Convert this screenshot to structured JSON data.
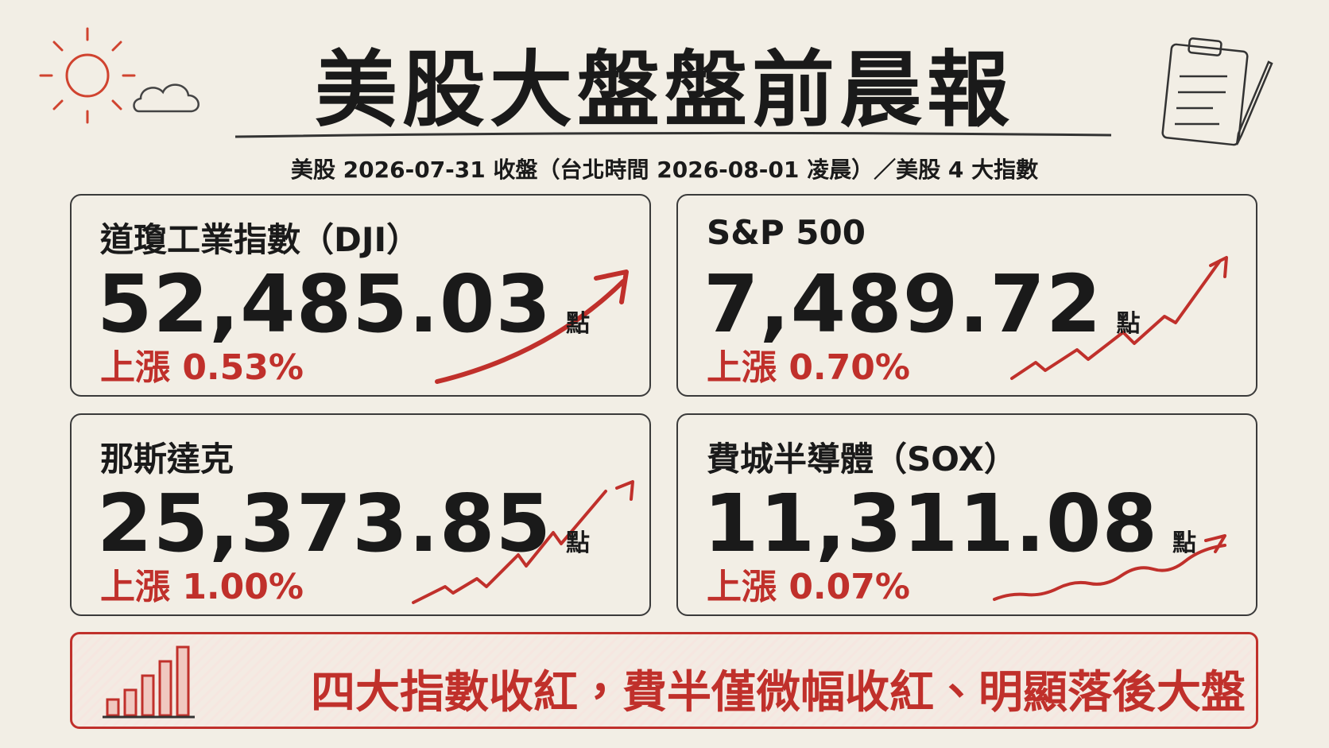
{
  "header": {
    "title": "美股大盤盤前晨報",
    "subtitle": "美股 2026-07-31 收盤（台北時間 2026-08-01 凌晨）／美股 4 大指數"
  },
  "cards": [
    {
      "name": "道瓊工業指數（DJI）",
      "value": "52,485.03",
      "unit": "點",
      "change": "上漲 0.53%"
    },
    {
      "name": "S&P 500",
      "value": "7,489.72",
      "unit": "點",
      "change": "上漲 0.70%"
    },
    {
      "name": "那斯達克",
      "value": "25,373.85",
      "unit": "點",
      "change": "上漲 1.00%"
    },
    {
      "name": "費城半導體（SOX）",
      "value": "11,311.08",
      "unit": "點",
      "change": "上漲 0.07%"
    }
  ],
  "footer": {
    "text": "四大指數收紅，費半僅微幅收紅、明顯落後大盤"
  }
}
